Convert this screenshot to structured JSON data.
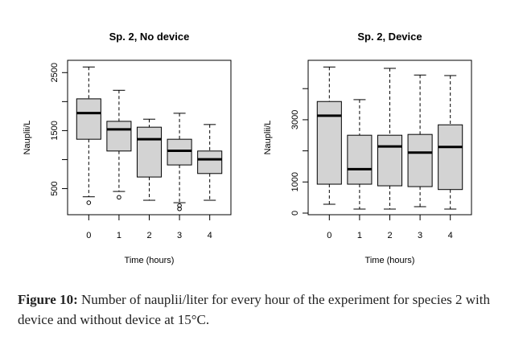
{
  "chart_data": [
    {
      "type": "boxplot",
      "title": "Sp. 2, No device",
      "xlabel": "Time (hours)",
      "ylabel": "Nauplii/L",
      "categories": [
        "0",
        "1",
        "2",
        "3",
        "4"
      ],
      "ylim": [
        50,
        2712
      ],
      "yticks": [
        500,
        1000,
        1500,
        2000,
        2500
      ],
      "ytick_labels": [
        "500",
        "",
        "1500",
        "",
        "2500"
      ],
      "boxes": [
        {
          "min": 359,
          "q1": 1351,
          "median": 1803,
          "q3": 2048,
          "max": 2597,
          "outliers": [
            257
          ]
        },
        {
          "min": 451,
          "q1": 1148,
          "median": 1522,
          "q3": 1660,
          "max": 2195,
          "outliers": [
            350
          ]
        },
        {
          "min": 299,
          "q1": 700,
          "median": 1351,
          "q3": 1559,
          "max": 1697,
          "outliers": []
        },
        {
          "min": 257,
          "q1": 908,
          "median": 1153,
          "q3": 1351,
          "max": 1799,
          "outliers": [
            207,
            151
          ]
        },
        {
          "min": 299,
          "q1": 760,
          "median": 1005,
          "q3": 1148,
          "max": 1605,
          "outliers": []
        }
      ]
    },
    {
      "type": "boxplot",
      "title": "Sp. 2, Device",
      "xlabel": "Time (hours)",
      "ylabel": "Nauplii/L",
      "categories": [
        "0",
        "1",
        "2",
        "3",
        "4"
      ],
      "ylim": [
        -52,
        4910
      ],
      "yticks": [
        0,
        1000,
        2000,
        3000,
        4000
      ],
      "ytick_labels": [
        "0",
        "1000",
        "",
        "3000",
        ""
      ],
      "boxes": [
        {
          "min": 284,
          "q1": 929,
          "median": 3130,
          "q3": 3586,
          "max": 4695,
          "outliers": []
        },
        {
          "min": 129,
          "q1": 929,
          "median": 1410,
          "q3": 2502,
          "max": 3646,
          "outliers": []
        },
        {
          "min": 129,
          "q1": 877,
          "median": 2141,
          "q3": 2502,
          "max": 4652,
          "outliers": []
        },
        {
          "min": 206,
          "q1": 851,
          "median": 1943,
          "q3": 2528,
          "max": 4437,
          "outliers": []
        },
        {
          "min": 129,
          "q1": 757,
          "median": 2124,
          "q3": 2837,
          "max": 4420,
          "outliers": []
        }
      ]
    }
  ],
  "caption": {
    "label": "Figure 10:",
    "text": " Number of nauplii/liter for every hour of the experiment for species 2 with device and without device at 15°C."
  },
  "colors": {
    "box_fill": "#d3d3d3"
  }
}
